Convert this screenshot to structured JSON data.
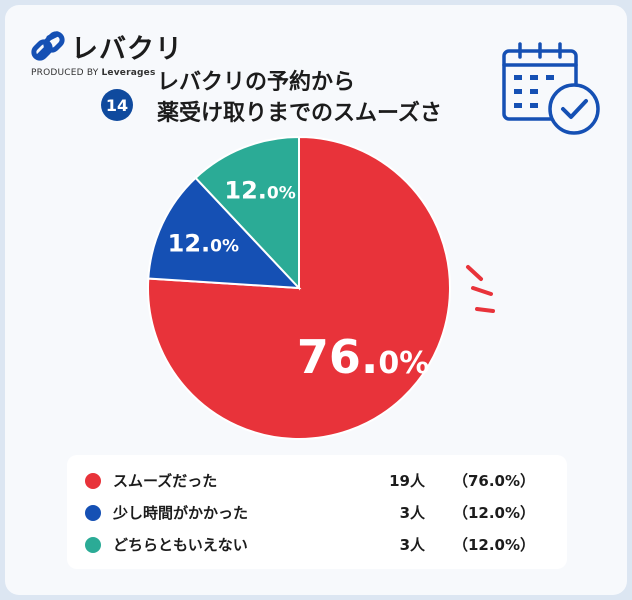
{
  "brand": {
    "name": "レバクリ",
    "produced_prefix": "PRODUCED BY",
    "produced_by": "Leverages"
  },
  "question": {
    "number": "14",
    "title_line1": "レバクリの予約から",
    "title_line2": "薬受け取りまでのスムーズさ"
  },
  "colors": {
    "red": "#e8333a",
    "blue": "#1550b4",
    "teal": "#2bab96",
    "navy": "#0f4a9e"
  },
  "icons": {
    "logo": "link-chain-icon",
    "calendar": "calendar-check-icon"
  },
  "chart_data": {
    "type": "pie",
    "start_angle": "12 o'clock, clockwise",
    "series": [
      {
        "name": "スムーズだった",
        "count": 19,
        "count_label": "19人",
        "value": 76.0,
        "pct_label": "（76.0%）",
        "slice_num": "76.",
        "slice_dec": "0%",
        "color": "#e8333a"
      },
      {
        "name": "少し時間がかかった",
        "count": 3,
        "count_label": "3人",
        "value": 12.0,
        "pct_label": "（12.0%）",
        "slice_num": "12.",
        "slice_dec": "0%",
        "color": "#1550b4"
      },
      {
        "name": "どちらともいえない",
        "count": 3,
        "count_label": "3人",
        "value": 12.0,
        "pct_label": "（12.0%）",
        "slice_num": "12.",
        "slice_dec": "0%",
        "color": "#2bab96"
      }
    ]
  }
}
